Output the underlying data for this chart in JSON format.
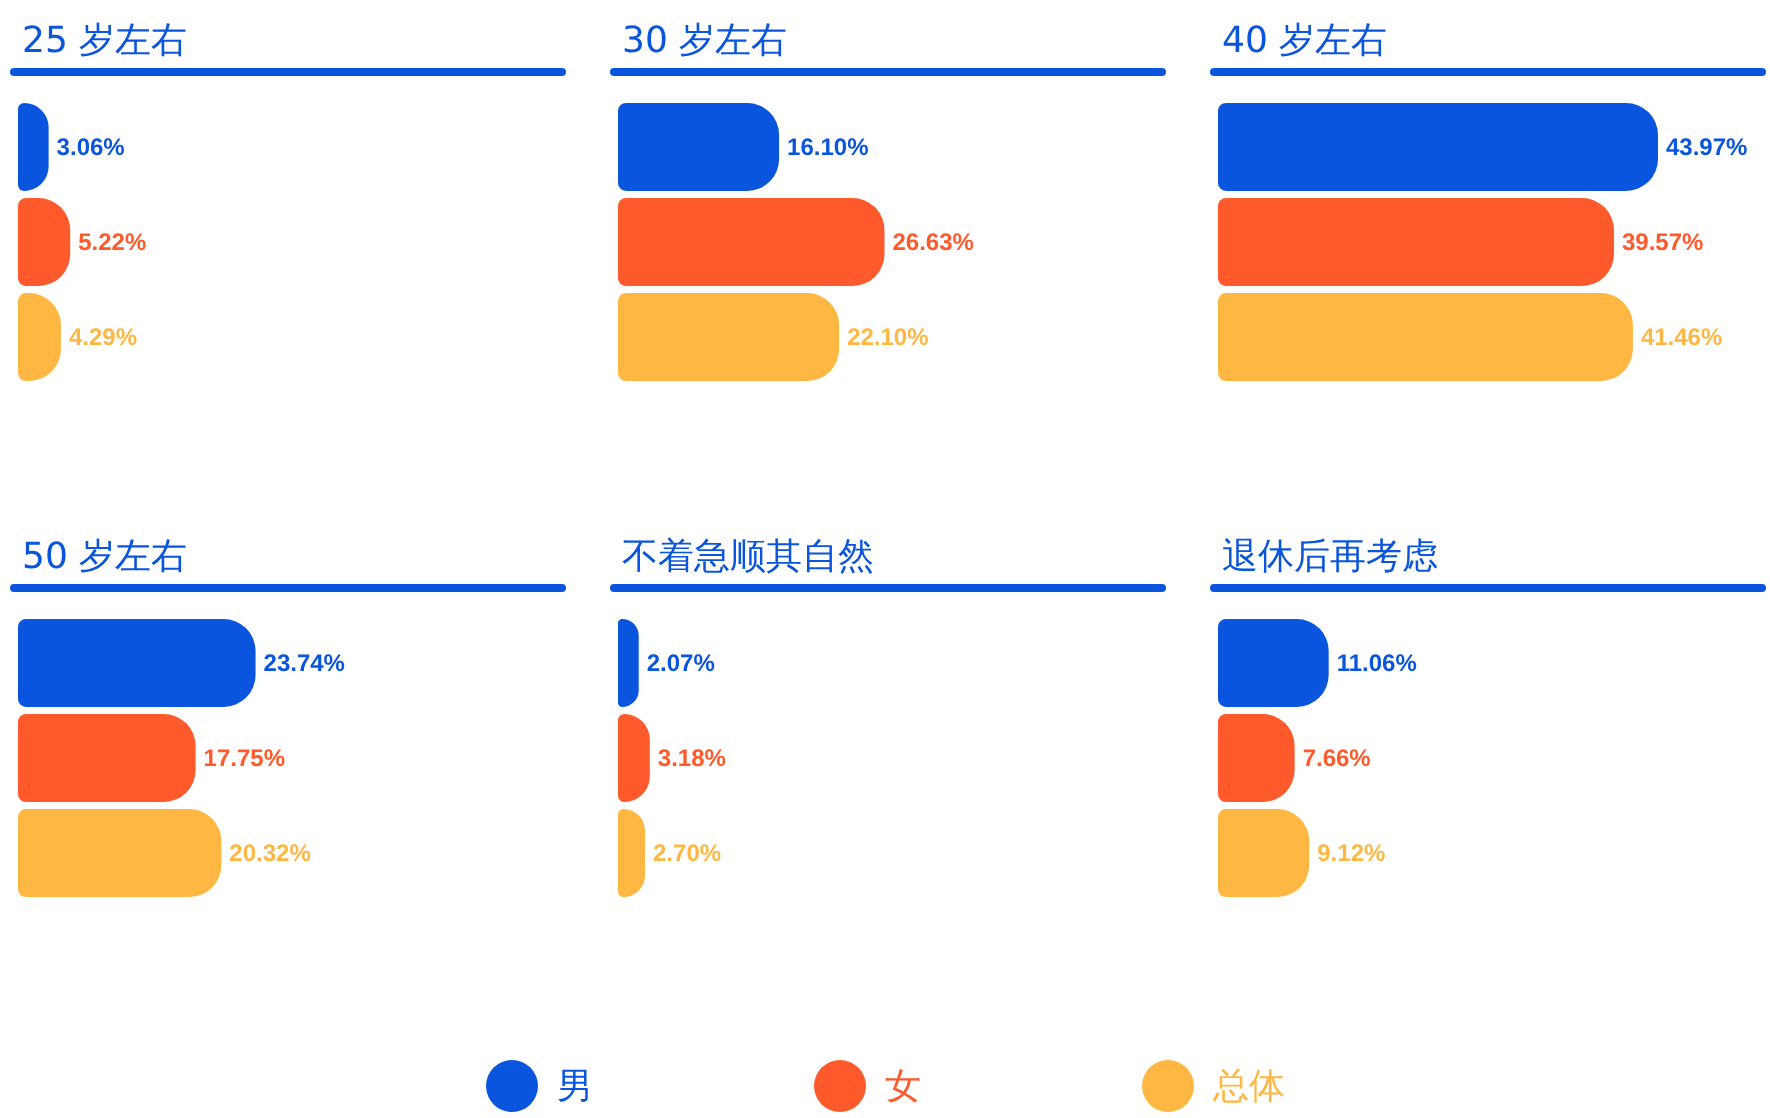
{
  "chart_data": [
    {
      "type": "bar",
      "orientation": "horizontal",
      "title": "25 岁左右",
      "categories": [
        null
      ],
      "legend": "bottom",
      "series": [
        {
          "name": "男",
          "color": "#0a55dd",
          "values": [
            3.06
          ],
          "value_labels": [
            "3.06%"
          ]
        },
        {
          "name": "女",
          "color": "#ff5a2c",
          "values": [
            5.22
          ],
          "value_labels": [
            "5.22%"
          ]
        },
        {
          "name": "总体",
          "color": "#ffb743",
          "values": [
            4.29
          ],
          "value_labels": [
            "4.29%"
          ]
        }
      ]
    },
    {
      "type": "bar",
      "orientation": "horizontal",
      "title": "30 岁左右",
      "categories": [
        null
      ],
      "series": [
        {
          "color": "#0a55dd",
          "values": [
            16.1
          ],
          "value_labels": [
            "16.10%"
          ]
        },
        {
          "color": "#ff5a2c",
          "values": [
            26.63
          ],
          "value_labels": [
            "26.63%"
          ]
        },
        {
          "color": "#ffb743",
          "values": [
            22.1
          ],
          "value_labels": [
            "22.10%"
          ]
        }
      ]
    },
    {
      "type": "bar",
      "orientation": "horizontal",
      "title": "40 岁左右",
      "categories": [
        null
      ],
      "series": [
        {
          "color": "#0a55dd",
          "values": [
            43.97
          ],
          "value_labels": [
            "43.97%"
          ]
        },
        {
          "color": "#ff5a2c",
          "values": [
            39.57
          ],
          "value_labels": [
            "39.57%"
          ]
        },
        {
          "color": "#ffb743",
          "values": [
            41.46
          ],
          "value_labels": [
            "41.46%"
          ]
        }
      ]
    },
    {
      "type": "bar",
      "orientation": "horizontal",
      "title": "50 岁左右",
      "categories": [
        null
      ],
      "series": [
        {
          "color": "#0a55dd",
          "values": [
            23.74
          ],
          "value_labels": [
            "23.74%"
          ]
        },
        {
          "color": "#ff5a2c",
          "values": [
            17.75
          ],
          "value_labels": [
            "17.75%"
          ]
        },
        {
          "color": "#ffb743",
          "values": [
            20.32
          ],
          "value_labels": [
            "20.32%"
          ]
        }
      ]
    },
    {
      "type": "bar",
      "orientation": "horizontal",
      "title": "不着急顺其自然",
      "categories": [
        null
      ],
      "series": [
        {
          "color": "#0a55dd",
          "values": [
            2.07
          ],
          "value_labels": [
            "2.07%"
          ]
        },
        {
          "color": "#ff5a2c",
          "values": [
            3.18
          ],
          "value_labels": [
            "3.18%"
          ]
        },
        {
          "color": "#ffb743",
          "values": [
            2.7
          ],
          "value_labels": [
            "2.70%"
          ]
        }
      ]
    },
    {
      "type": "bar",
      "orientation": "horizontal",
      "title": "退休后再考虑",
      "categories": [
        null
      ],
      "series": [
        {
          "color": "#0a55dd",
          "values": [
            11.06
          ],
          "value_labels": [
            "11.06%"
          ]
        },
        {
          "color": "#ff5a2c",
          "values": [
            7.66
          ],
          "value_labels": [
            "7.66%"
          ]
        },
        {
          "color": "#ffb743",
          "values": [
            9.12
          ],
          "value_labels": [
            "9.12%"
          ]
        }
      ]
    }
  ]
}
